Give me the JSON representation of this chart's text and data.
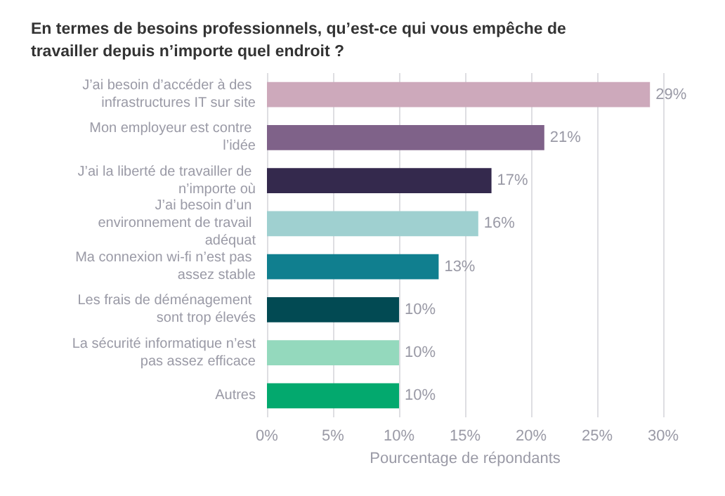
{
  "chart_data": {
    "type": "bar",
    "orientation": "horizontal",
    "title": "En termes de besoins professionnels, qu’est-ce qui vous empêche de travailler depuis n’importe quel endroit ?",
    "xlabel": "Pourcentage de répondants",
    "categories": [
      "J’ai besoin d’accéder à des infrastructures IT sur site",
      "Mon employeur est contre l’idée",
      "J’ai la liberté de travailler de n’importe où",
      "J’ai besoin d’un environnement de travail adéquat",
      "Ma connexion wi-fi n’est pas assez stable",
      "Les frais de déménagement sont trop élevés",
      "La sécurité informatique n’est pas assez efficace",
      "Autres"
    ],
    "values": [
      29,
      21,
      17,
      16,
      13,
      10,
      10,
      10
    ],
    "value_labels": [
      "29%",
      "21%",
      "17%",
      "16%",
      "13%",
      "10%",
      "10%",
      "10%"
    ],
    "colors": [
      "#cda9bb",
      "#7f6289",
      "#34294d",
      "#9fd0d0",
      "#107f8f",
      "#024a53",
      "#94d9bd",
      "#03a96e"
    ],
    "xlim": [
      0,
      30
    ],
    "xticks": [
      {
        "value": 0,
        "label": "0%"
      },
      {
        "value": 5,
        "label": "5%"
      },
      {
        "value": 10,
        "label": "10%"
      },
      {
        "value": 15,
        "label": "15%"
      },
      {
        "value": 20,
        "label": "20%"
      },
      {
        "value": 25,
        "label": "25%"
      },
      {
        "value": 30,
        "label": "30%"
      }
    ],
    "grid": "x"
  }
}
